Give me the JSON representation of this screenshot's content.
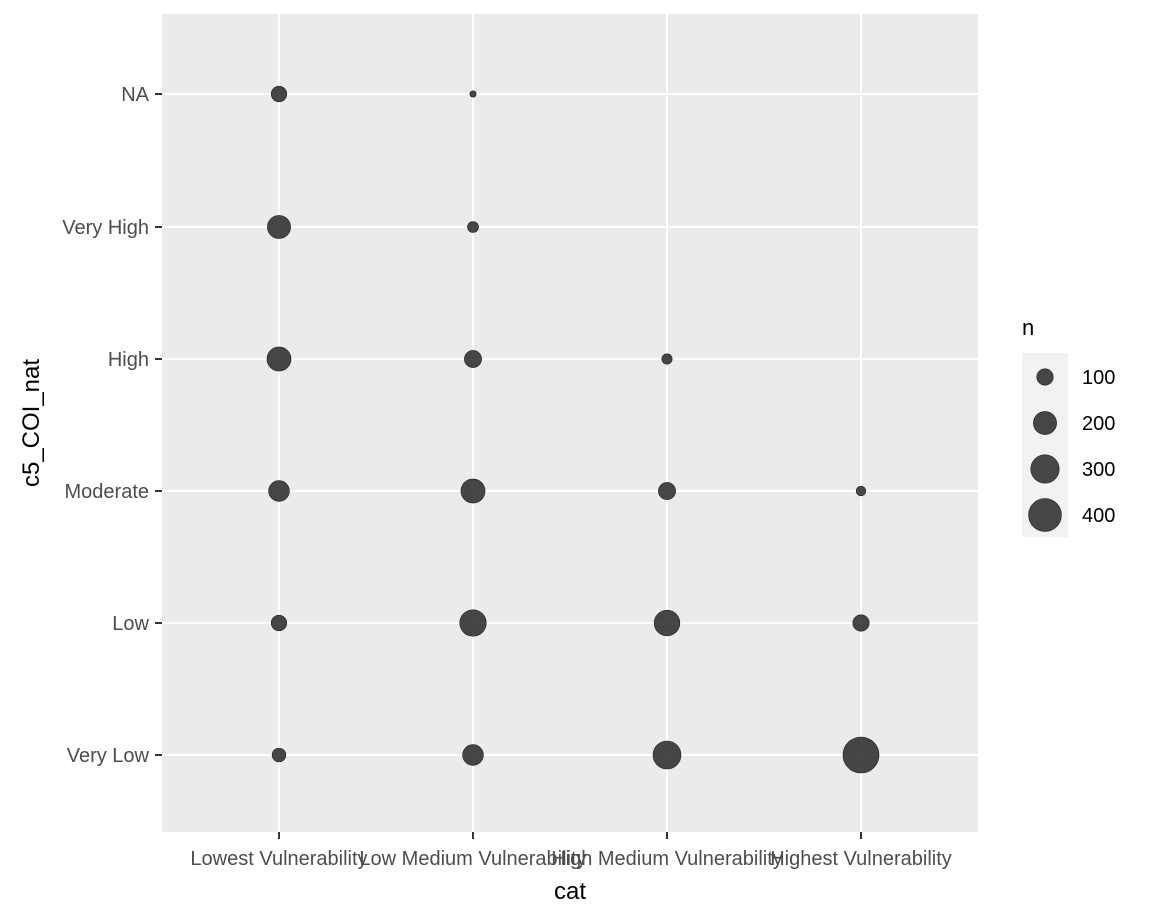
{
  "chart_data": {
    "type": "scatter",
    "title": "",
    "xlabel": "cat",
    "ylabel": "c5_COI_nat",
    "x_categories": [
      "Lowest Vulnerability",
      "Low Medium Vulnerability",
      "High Medium Vulnerability",
      "Highest Vulnerability"
    ],
    "y_categories": [
      "Very Low",
      "Low",
      "Moderate",
      "High",
      "Very High",
      "NA"
    ],
    "grid": true,
    "points": [
      {
        "x": "Lowest Vulnerability",
        "y": "NA",
        "n": 90
      },
      {
        "x": "Low Medium Vulnerability",
        "y": "NA",
        "n": 15
      },
      {
        "x": "Lowest Vulnerability",
        "y": "Very High",
        "n": 200
      },
      {
        "x": "Low Medium Vulnerability",
        "y": "Very High",
        "n": 45
      },
      {
        "x": "Lowest Vulnerability",
        "y": "High",
        "n": 215
      },
      {
        "x": "Low Medium Vulnerability",
        "y": "High",
        "n": 110
      },
      {
        "x": "High Medium Vulnerability",
        "y": "High",
        "n": 40
      },
      {
        "x": "Lowest Vulnerability",
        "y": "Moderate",
        "n": 160
      },
      {
        "x": "Low Medium Vulnerability",
        "y": "Moderate",
        "n": 215
      },
      {
        "x": "High Medium Vulnerability",
        "y": "Moderate",
        "n": 110
      },
      {
        "x": "Highest Vulnerability",
        "y": "Moderate",
        "n": 35
      },
      {
        "x": "Lowest Vulnerability",
        "y": "Low",
        "n": 90
      },
      {
        "x": "Low Medium Vulnerability",
        "y": "Low",
        "n": 260
      },
      {
        "x": "High Medium Vulnerability",
        "y": "Low",
        "n": 245
      },
      {
        "x": "Highest Vulnerability",
        "y": "Low",
        "n": 100
      },
      {
        "x": "Lowest Vulnerability",
        "y": "Very Low",
        "n": 70
      },
      {
        "x": "Low Medium Vulnerability",
        "y": "Very Low",
        "n": 160
      },
      {
        "x": "High Medium Vulnerability",
        "y": "Very Low",
        "n": 290
      },
      {
        "x": "Highest Vulnerability",
        "y": "Very Low",
        "n": 480
      }
    ],
    "legend": {
      "title": "n",
      "placement": "right",
      "values": [
        100,
        200,
        300,
        400
      ],
      "labels": [
        "100",
        "200",
        "300",
        "400"
      ]
    },
    "colors": {
      "panel": "#ebebeb",
      "grid": "#ffffff",
      "point": "#333333",
      "tick_text": "#4d4d4d",
      "axis_tick": "#333333"
    }
  }
}
